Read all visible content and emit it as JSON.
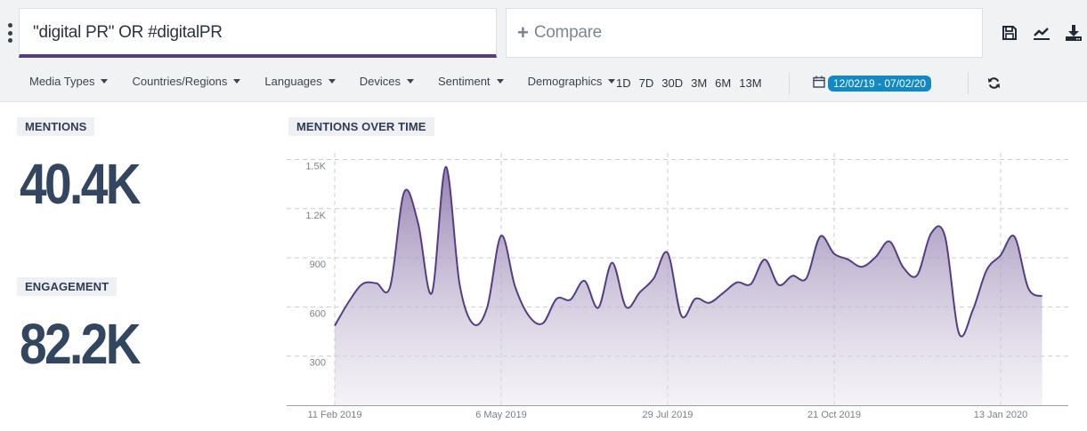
{
  "search": {
    "query": "\"digital PR\" OR #digitalPR",
    "compare_label": "Compare",
    "compare_icon": "plus-icon"
  },
  "toolbar": {
    "icons": [
      "save-icon",
      "line-chart-icon",
      "download-icon"
    ]
  },
  "filters": [
    {
      "label": "Media Types"
    },
    {
      "label": "Countries/Regions"
    },
    {
      "label": "Languages"
    },
    {
      "label": "Devices"
    },
    {
      "label": "Sentiment"
    },
    {
      "label": "Demographics"
    }
  ],
  "ranges": [
    "1D",
    "7D",
    "30D",
    "3M",
    "6M",
    "13M"
  ],
  "date_range": "12/02/19 - 07/02/20",
  "colors": {
    "accent": "#553d85",
    "badge": "#1189c4",
    "text": "#33465f"
  },
  "metrics": {
    "mentions": {
      "label": "MENTIONS",
      "value": "40.4K"
    },
    "engagement": {
      "label": "ENGAGEMENT",
      "value": "82.2K"
    }
  },
  "chart_data": {
    "type": "area",
    "title": "MENTIONS OVER TIME",
    "xlabel": "",
    "ylabel": "",
    "ylim": [
      0,
      1600
    ],
    "yticks": [
      "300",
      "600",
      "900",
      "1.2K",
      "1.5K"
    ],
    "ytick_values": [
      300,
      600,
      900,
      1200,
      1500
    ],
    "xticks": [
      "11 Feb 2019",
      "6 May 2019",
      "29 Jul 2019",
      "21 Oct 2019",
      "13 Jan 2020"
    ],
    "grid": true,
    "legend": "none",
    "interval": "weekly",
    "x": [
      "2019-02-11",
      "2019-02-18",
      "2019-02-25",
      "2019-03-04",
      "2019-03-11",
      "2019-03-18",
      "2019-03-25",
      "2019-04-01",
      "2019-04-08",
      "2019-04-15",
      "2019-04-22",
      "2019-04-29",
      "2019-05-06",
      "2019-05-13",
      "2019-05-20",
      "2019-05-27",
      "2019-06-03",
      "2019-06-10",
      "2019-06-17",
      "2019-06-24",
      "2019-07-01",
      "2019-07-08",
      "2019-07-15",
      "2019-07-22",
      "2019-07-29",
      "2019-08-05",
      "2019-08-12",
      "2019-08-19",
      "2019-08-26",
      "2019-09-02",
      "2019-09-09",
      "2019-09-16",
      "2019-09-23",
      "2019-09-30",
      "2019-10-07",
      "2019-10-14",
      "2019-10-21",
      "2019-10-28",
      "2019-11-04",
      "2019-11-11",
      "2019-11-18",
      "2019-11-25",
      "2019-12-02",
      "2019-12-09",
      "2019-12-16",
      "2019-12-23",
      "2019-12-30",
      "2020-01-06",
      "2020-01-13",
      "2020-01-20",
      "2020-01-27",
      "2020-02-03"
    ],
    "values": [
      485,
      630,
      740,
      745,
      725,
      1300,
      1115,
      685,
      1455,
      740,
      495,
      600,
      1035,
      725,
      545,
      500,
      650,
      645,
      760,
      595,
      870,
      600,
      690,
      775,
      930,
      545,
      650,
      625,
      685,
      750,
      740,
      890,
      735,
      790,
      775,
      1030,
      925,
      890,
      845,
      905,
      1000,
      840,
      795,
      1050,
      1030,
      440,
      580,
      825,
      915,
      1030,
      715,
      665
    ]
  }
}
